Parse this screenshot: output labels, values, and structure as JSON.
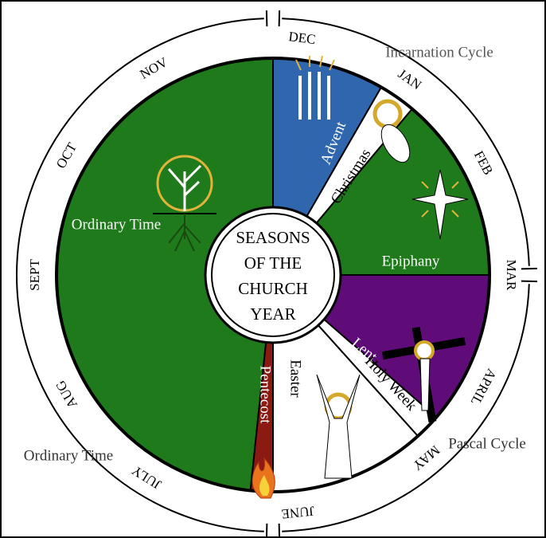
{
  "title_lines": [
    "SEASONS",
    "OF THE",
    "CHURCH",
    "YEAR"
  ],
  "months": [
    "DEC",
    "JAN",
    "FEB",
    "MAR",
    "APRIL",
    "MAY",
    "JUNE",
    "JULY",
    "AUG",
    "SEPT",
    "OCT",
    "NOV"
  ],
  "seasons": [
    "Advent",
    "Christmas",
    "Epiphany",
    "Lent",
    "Holy Week",
    "Easter",
    "Pentecost",
    "Ordinary Time"
  ],
  "cycles": [
    "Incarnation Cycle",
    "Pascal Cycle",
    "Ordinary Time"
  ]
}
